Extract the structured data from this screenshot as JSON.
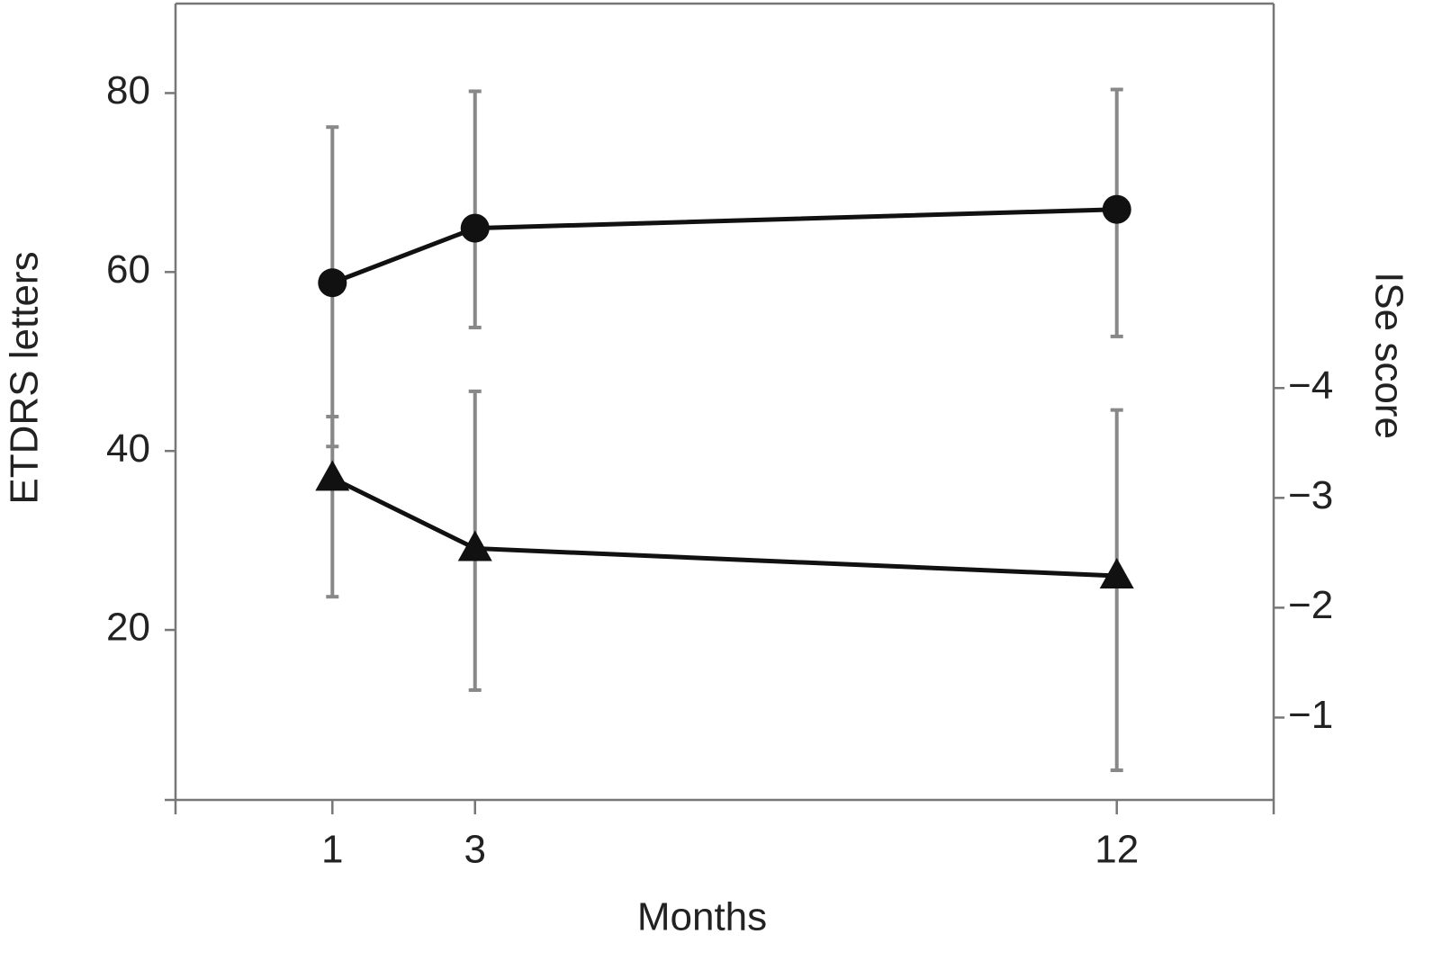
{
  "chart_data": {
    "type": "line",
    "x_label": "Months",
    "y_label": "ETDRS letters",
    "y2_label": "ISe score",
    "x": [
      1,
      3,
      12
    ],
    "xlim": [
      -1.2,
      14.2
    ],
    "xticks": [
      1,
      3,
      12
    ],
    "ylim": [
      1,
      90
    ],
    "yticks": [
      20,
      40,
      60,
      80
    ],
    "y2lim": [
      -0.25,
      -7.5
    ],
    "y2ticks": [
      {
        "value": -1,
        "label": "−1"
      },
      {
        "value": -2,
        "label": "−2"
      },
      {
        "value": -3,
        "label": "−3"
      },
      {
        "value": -4,
        "label": "−4"
      }
    ],
    "error_color": "#888888",
    "series": [
      {
        "color": "#111111",
        "marker": "circle",
        "values": [
          58.8,
          64.9,
          67.0
        ],
        "errors_plus": [
          17.4,
          15.3,
          13.4
        ],
        "errors_minus": [
          18.3,
          11.1,
          14.2
        ]
      },
      {
        "color": "#111111",
        "marker": "triangle",
        "axis": "y2",
        "values": [
          -3.18,
          -2.54,
          -2.29
        ],
        "errors_plus": [
          -0.56,
          -1.43,
          -1.51
        ],
        "errors_minus": [
          -1.08,
          -1.29,
          -1.77
        ]
      }
    ]
  }
}
